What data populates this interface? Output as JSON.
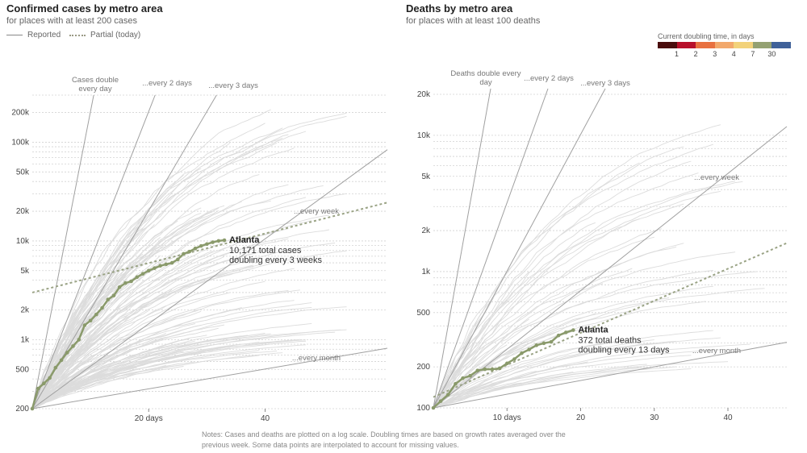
{
  "legend": {
    "reported": "Reported",
    "partial": "Partial (today)"
  },
  "doubling_legend": {
    "title": "Current doubling time, in days",
    "labels": [
      "1",
      "2",
      "3",
      "4",
      "7",
      "30"
    ],
    "colors": [
      "#4a0d0d",
      "#b8102a",
      "#e8703f",
      "#f2a86b",
      "#f2d27a",
      "#94a172",
      "#3f6199"
    ]
  },
  "notes": "Notes: Cases and deaths are plotted on a log scale. Doubling times are based on growth rates averaged over the previous week. Some data points are interpolated to account for missing values.",
  "colors": {
    "highlight": "#8a9a6b",
    "background_lines": "#dcdcdc",
    "reference": "#a0a0a0"
  },
  "chart_data": [
    {
      "type": "line",
      "title": "Confirmed cases by metro area",
      "subtitle": "for places with at least 200 cases",
      "scale": "log",
      "ylim": [
        200,
        300000
      ],
      "xlim": [
        0,
        61
      ],
      "y_ticks": [
        200,
        500,
        1000,
        2000,
        5000,
        10000,
        20000,
        50000,
        100000,
        200000
      ],
      "y_tick_labels": [
        "200",
        "500",
        "1k",
        "2k",
        "5k",
        "10k",
        "20k",
        "50k",
        "100k",
        "200k"
      ],
      "x_ticks": [
        20,
        40
      ],
      "x_tick_labels": [
        "20 days",
        "40"
      ],
      "reference_lines": [
        {
          "label": "Cases double every day",
          "doubling_days": 1
        },
        {
          "label": "...every 2 days",
          "doubling_days": 2
        },
        {
          "label": "...every 3 days",
          "doubling_days": 3
        },
        {
          "label": "...every week",
          "doubling_days": 7
        },
        {
          "label": "...every month",
          "doubling_days": 30
        }
      ],
      "highlight": {
        "name": "Atlanta",
        "annotation": [
          "10,171 total cases",
          "doubling every 3 weeks"
        ],
        "x": [
          0,
          1,
          2,
          3,
          4,
          5,
          6,
          7,
          8,
          9,
          10,
          11,
          12,
          13,
          14,
          15,
          16,
          17,
          18,
          19,
          20,
          21,
          22,
          23,
          24,
          25,
          26,
          27,
          28,
          29,
          30,
          31,
          32,
          33
        ],
        "y": [
          200,
          320,
          360,
          410,
          520,
          620,
          740,
          860,
          1000,
          1400,
          1560,
          1800,
          2100,
          2550,
          2800,
          3400,
          3750,
          3900,
          4300,
          4650,
          5000,
          5300,
          5600,
          5800,
          6000,
          6500,
          7400,
          7800,
          8400,
          8900,
          9300,
          9700,
          10000,
          10171
        ],
        "partial": {
          "x": [
            0,
            61
          ],
          "y": [
            3000,
            24500
          ]
        }
      }
    },
    {
      "type": "line",
      "title": "Deaths by metro area",
      "subtitle": "for places with at least 100 deaths",
      "scale": "log",
      "ylim": [
        100,
        22000
      ],
      "xlim": [
        0,
        48
      ],
      "y_ticks": [
        100,
        200,
        500,
        1000,
        2000,
        5000,
        10000,
        20000
      ],
      "y_tick_labels": [
        "100",
        "200",
        "500",
        "1k",
        "2k",
        "5k",
        "10k",
        "20k"
      ],
      "x_ticks": [
        10,
        20,
        30,
        40
      ],
      "x_tick_labels": [
        "10 days",
        "20",
        "30",
        "40"
      ],
      "reference_lines": [
        {
          "label": "Deaths double every day",
          "doubling_days": 1
        },
        {
          "label": "...every 2 days",
          "doubling_days": 2
        },
        {
          "label": "...every 3 days",
          "doubling_days": 3
        },
        {
          "label": "...every week",
          "doubling_days": 7
        },
        {
          "label": "...every month",
          "doubling_days": 30
        }
      ],
      "highlight": {
        "name": "Atlanta",
        "annotation": [
          "372 total deaths",
          "doubling every 13 days"
        ],
        "x": [
          0,
          1,
          2,
          3,
          4,
          5,
          6,
          7,
          8,
          9,
          10,
          11,
          12,
          13,
          14,
          15,
          16,
          17,
          18,
          19
        ],
        "y": [
          100,
          112,
          125,
          150,
          165,
          172,
          188,
          192,
          192,
          195,
          212,
          228,
          252,
          268,
          288,
          298,
          305,
          340,
          358,
          372
        ],
        "partial": {
          "x": [
            0,
            48
          ],
          "y": [
            120,
            1620
          ]
        }
      }
    }
  ]
}
